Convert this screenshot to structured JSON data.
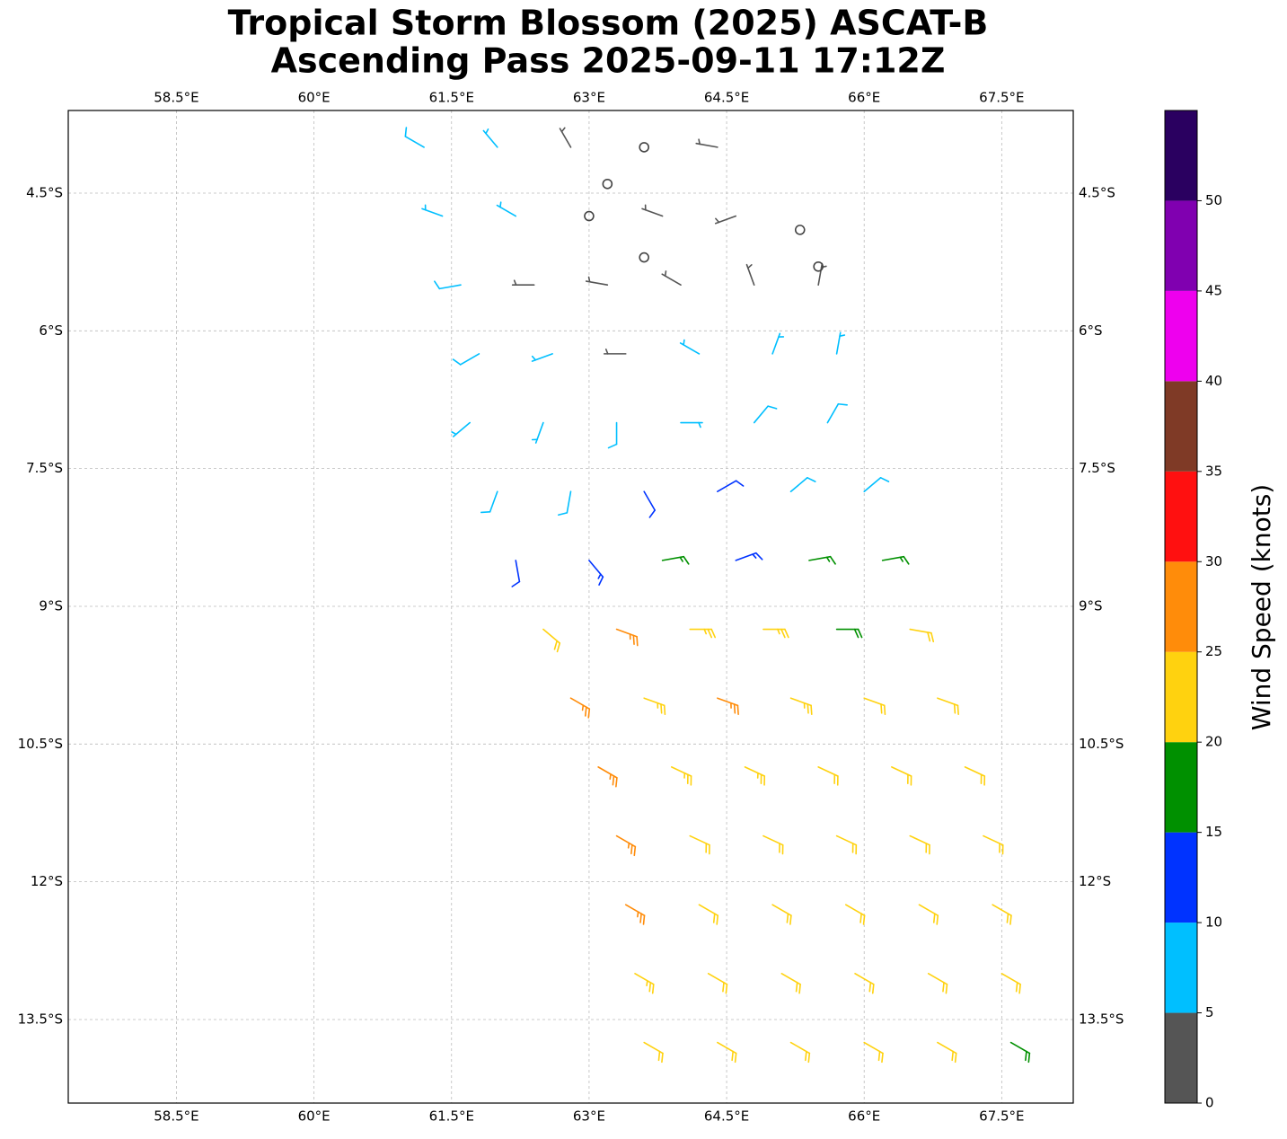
{
  "chart_data": {
    "type": "barbs",
    "title": "Tropical Storm Blossom (2025) ASCAT-B",
    "subtitle": "Ascending Pass 2025-09-11 17:12Z",
    "xlim": [
      57.32,
      68.28
    ],
    "ylim": [
      -14.41,
      -3.6
    ],
    "xticks": [
      {
        "value": 58.5,
        "label": "58.5°E"
      },
      {
        "value": 60,
        "label": "60°E"
      },
      {
        "value": 61.5,
        "label": "61.5°E"
      },
      {
        "value": 63,
        "label": "63°E"
      },
      {
        "value": 64.5,
        "label": "64.5°E"
      },
      {
        "value": 66,
        "label": "66°E"
      },
      {
        "value": 67.5,
        "label": "67.5°E"
      }
    ],
    "yticks": [
      {
        "value": -4.5,
        "label": "4.5°S"
      },
      {
        "value": -6,
        "label": "6°S"
      },
      {
        "value": -7.5,
        "label": "7.5°S"
      },
      {
        "value": -9,
        "label": "9°S"
      },
      {
        "value": -10.5,
        "label": "10.5°S"
      },
      {
        "value": -12,
        "label": "12°S"
      },
      {
        "value": -13.5,
        "label": "13.5°S"
      }
    ],
    "grid": true,
    "barbs": {
      "lon": [
        61.2,
        62.0,
        62.8,
        63.6,
        64.4,
        61.4,
        62.2,
        63.0,
        63.8,
        64.6,
        61.6,
        62.4,
        63.2,
        64.0,
        64.8,
        65.5,
        61.8,
        62.6,
        63.4,
        64.2,
        65.0,
        65.7,
        61.7,
        62.5,
        63.3,
        64.0,
        64.8,
        65.6,
        62.0,
        62.8,
        63.6,
        64.4,
        65.2,
        66.0,
        62.2,
        63.0,
        63.8,
        64.6,
        65.4,
        66.2,
        62.5,
        63.3,
        64.1,
        64.9,
        65.7,
        66.5,
        62.8,
        63.6,
        64.4,
        65.2,
        66.0,
        66.8,
        63.1,
        63.9,
        64.7,
        65.5,
        66.3,
        67.1,
        63.3,
        64.1,
        64.9,
        65.7,
        66.5,
        67.3,
        63.4,
        64.2,
        65.0,
        65.8,
        66.6,
        67.4,
        63.5,
        64.3,
        65.1,
        65.9,
        66.7,
        67.5,
        63.6,
        64.4,
        65.2,
        66.0,
        66.8,
        67.6,
        63.2,
        63.6,
        65.3,
        65.5
      ],
      "lat": [
        -4.0,
        -4.0,
        -4.0,
        -4.0,
        -4.0,
        -4.75,
        -4.75,
        -4.75,
        -4.75,
        -4.75,
        -5.5,
        -5.5,
        -5.5,
        -5.5,
        -5.5,
        -5.5,
        -6.25,
        -6.25,
        -6.25,
        -6.25,
        -6.25,
        -6.25,
        -7.0,
        -7.0,
        -7.0,
        -7.0,
        -7.0,
        -7.0,
        -7.75,
        -7.75,
        -7.75,
        -7.75,
        -7.75,
        -7.75,
        -8.5,
        -8.5,
        -8.5,
        -8.5,
        -8.5,
        -8.5,
        -9.25,
        -9.25,
        -9.25,
        -9.25,
        -9.25,
        -9.25,
        -10.0,
        -10.0,
        -10.0,
        -10.0,
        -10.0,
        -10.0,
        -10.75,
        -10.75,
        -10.75,
        -10.75,
        -10.75,
        -10.75,
        -11.5,
        -11.5,
        -11.5,
        -11.5,
        -11.5,
        -11.5,
        -12.25,
        -12.25,
        -12.25,
        -12.25,
        -12.25,
        -12.25,
        -13.0,
        -13.0,
        -13.0,
        -13.0,
        -13.0,
        -13.0,
        -13.75,
        -13.75,
        -13.75,
        -13.75,
        -13.75,
        -13.75,
        -4.4,
        -5.2,
        -4.9,
        -5.3
      ],
      "speed": [
        8,
        6,
        3,
        0,
        4,
        7,
        5,
        0,
        3,
        4,
        8,
        4,
        3,
        4,
        3,
        4,
        8,
        6,
        4,
        5,
        7,
        6,
        7,
        7,
        8,
        6,
        8,
        8,
        9,
        9,
        11,
        12,
        9,
        9,
        12,
        13,
        17,
        14,
        17,
        17,
        22,
        27,
        23,
        23,
        18,
        21,
        26,
        23,
        27,
        23,
        22,
        22,
        26,
        23,
        24,
        22,
        22,
        22,
        27,
        22,
        22,
        22,
        22,
        22,
        26,
        22,
        22,
        22,
        22,
        22,
        23,
        22,
        22,
        22,
        22,
        22,
        22,
        22,
        22,
        22,
        21,
        18,
        0,
        0,
        0,
        0
      ],
      "direction": [
        300,
        320,
        330,
        0,
        280,
        290,
        300,
        0,
        290,
        250,
        260,
        270,
        280,
        300,
        340,
        10,
        240,
        250,
        270,
        300,
        20,
        10,
        230,
        200,
        180,
        90,
        40,
        30,
        200,
        190,
        150,
        60,
        50,
        50,
        170,
        140,
        80,
        70,
        80,
        80,
        130,
        110,
        90,
        90,
        90,
        100,
        120,
        110,
        110,
        110,
        110,
        110,
        120,
        115,
        115,
        115,
        115,
        115,
        120,
        115,
        115,
        115,
        115,
        115,
        120,
        120,
        120,
        120,
        120,
        120,
        120,
        120,
        120,
        120,
        120,
        120,
        120,
        120,
        120,
        120,
        120,
        120,
        0,
        0,
        0,
        0
      ]
    },
    "colorbar": {
      "label": "Wind Speed (knots)",
      "bounds": [
        0,
        5,
        10,
        15,
        20,
        25,
        30,
        35,
        40,
        45,
        50,
        55
      ],
      "colors": [
        "#555555",
        "#00bfff",
        "#0033ff",
        "#009000",
        "#ffd20f",
        "#ff8c0a",
        "#ff1010",
        "#7f3a26",
        "#ee00ee",
        "#8000b0",
        "#2a0060"
      ],
      "ticks": [
        0,
        5,
        10,
        15,
        20,
        25,
        30,
        35,
        40,
        45,
        50
      ]
    }
  }
}
